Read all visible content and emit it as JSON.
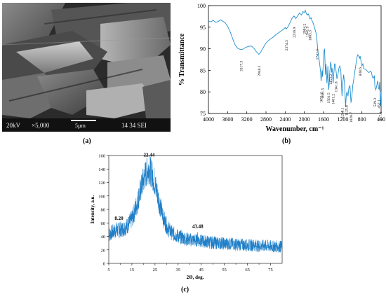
{
  "captions": {
    "a": "(a)",
    "b": "(b)",
    "c": "(c)"
  },
  "sem": {
    "info_bar": {
      "voltage": "20kV",
      "magnification": "×5,000",
      "scale": "5µm",
      "session": "14 34 SEI"
    }
  },
  "chart_data": [
    {
      "type": "line",
      "ylabel": "% Transmittance",
      "xlabel": "Wavenumber, cm⁻¹",
      "xlim": [
        4000,
        400
      ],
      "ylim": [
        75,
        100
      ],
      "x_ticks": [
        "4000",
        "3600",
        "3200",
        "2800",
        "2400",
        "2000",
        "1600",
        "1200",
        "800",
        "400"
      ],
      "y_ticks": [
        "75",
        "80",
        "85",
        "90",
        "95",
        "100"
      ],
      "color": "#1f8fd0",
      "grid": false,
      "series": [
        {
          "x": [
            4000,
            3950,
            3900,
            3850,
            3800,
            3750,
            3700,
            3650,
            3600,
            3550,
            3500,
            3450,
            3400,
            3350,
            3317,
            3280,
            3240,
            3200,
            3150,
            3100,
            3050,
            3000,
            2948,
            2900,
            2850,
            2800,
            2750,
            2700,
            2650,
            2600,
            2550,
            2500,
            2450,
            2400,
            2374,
            2340,
            2300,
            2260,
            2216,
            2180,
            2140,
            2100,
            2060,
            2030,
            2000,
            1980,
            1960,
            1941,
            1920,
            1900,
            1883,
            1860,
            1840,
            1820,
            1800,
            1780,
            1760,
            1741,
            1720,
            1700,
            1680,
            1660,
            1651,
            1640,
            1630,
            1621,
            1610,
            1600,
            1590,
            1580,
            1570,
            1560,
            1550,
            1540,
            1530,
            1520,
            1510,
            1500,
            1490,
            1480,
            1470,
            1460,
            1450,
            1440,
            1430,
            1420,
            1410,
            1400,
            1390,
            1380,
            1370,
            1360,
            1341,
            1320,
            1300,
            1280,
            1260,
            1240,
            1215,
            1200,
            1180,
            1160,
            1140,
            1125,
            1110,
            1090,
            1070,
            1050,
            1028,
            1010,
            990,
            970,
            950,
            930,
            910,
            890,
            870,
            850,
            838,
            820,
            800,
            780,
            760,
            740,
            720,
            700,
            680,
            660,
            640,
            620,
            600,
            580,
            560,
            540,
            529,
            510,
            490,
            470,
            452,
            440,
            430,
            420,
            417,
            410,
            400
          ],
          "y": [
            96.5,
            96.2,
            96.6,
            96.1,
            96.3,
            96.7,
            96.4,
            96.0,
            95.2,
            94.0,
            92.5,
            91.0,
            90.2,
            89.9,
            89.8,
            89.9,
            90.2,
            90.4,
            90.6,
            90.6,
            90.1,
            89.3,
            88.7,
            89.4,
            90.4,
            91.3,
            91.9,
            92.3,
            92.7,
            93.2,
            93.6,
            94.0,
            94.4,
            94.9,
            94.6,
            95.1,
            96.0,
            97.0,
            97.6,
            97.0,
            97.6,
            98.3,
            97.8,
            98.6,
            98.4,
            98.9,
            98.2,
            97.8,
            98.1,
            97.6,
            96.9,
            97.2,
            96.5,
            96.0,
            95.4,
            94.6,
            93.8,
            92.5,
            89.5,
            88.0,
            86.5,
            84.5,
            82.5,
            84.0,
            85.0,
            83.5,
            85.5,
            87.5,
            89.5,
            90.0,
            87.0,
            84.0,
            86.5,
            85.0,
            82.0,
            83.5,
            86.0,
            82.0,
            80.5,
            82.5,
            84.5,
            86.0,
            87.0,
            86.0,
            84.5,
            85.5,
            83.5,
            82.0,
            83.5,
            85.0,
            86.5,
            86.5,
            85.0,
            83.0,
            84.0,
            85.5,
            86.0,
            85.0,
            79.0,
            82.0,
            84.0,
            81.5,
            76.5,
            79.5,
            80.0,
            79.0,
            81.0,
            81.5,
            77.5,
            79.0,
            81.5,
            83.0,
            84.5,
            86.0,
            87.5,
            88.6,
            88.4,
            87.8,
            88.3,
            87.2,
            86.0,
            86.5,
            85.4,
            85.3,
            85.2,
            85.0,
            84.7,
            84.5,
            84.6,
            84.8,
            84.5,
            83.4,
            83.2,
            83.8,
            81.2,
            80.5,
            81.5,
            82.6,
            80.8,
            80.6,
            82.3,
            80.2,
            77.0,
            76.8,
            80.0
          ]
        }
      ],
      "annotations": [
        {
          "x": 3317,
          "label": "3317.3"
        },
        {
          "x": 2948,
          "label": "2948.3"
        },
        {
          "x": 2374,
          "label": "2374.3"
        },
        {
          "x": 2216,
          "label": "2216.9"
        },
        {
          "x": 2004,
          "label": "2004.2"
        },
        {
          "x": 1941,
          "label": "1941.9"
        },
        {
          "x": 1883,
          "label": "1883.3"
        },
        {
          "x": 1741,
          "label": "1741.3"
        },
        {
          "x": 1651,
          "label": "1651.2"
        },
        {
          "x": 1621,
          "label": "1621.5"
        },
        {
          "x": 1501,
          "label": "1501.5"
        },
        {
          "x": 1453,
          "label": "1453.2"
        },
        {
          "x": 1401,
          "label": "1401.2"
        },
        {
          "x": 1341,
          "label": "1341.8"
        },
        {
          "x": 1215,
          "label": "1215.1"
        },
        {
          "x": 1125,
          "label": "1125.6"
        },
        {
          "x": 1028,
          "label": "1028.7"
        },
        {
          "x": 838,
          "label": "838.6"
        },
        {
          "x": 529,
          "label": "529.3"
        },
        {
          "x": 452,
          "label": "452.1"
        },
        {
          "x": 417,
          "label": "417.4"
        }
      ]
    },
    {
      "type": "line",
      "ylabel": "Intensity, a.u.",
      "xlabel": "2Θ, deg.",
      "xlim": [
        5,
        80
      ],
      "ylim": [
        0,
        160
      ],
      "x_ticks": [
        "5",
        "15",
        "25",
        "35",
        "45",
        "55",
        "65",
        "75"
      ],
      "x_minor_ticks": [
        "10",
        "20",
        "30",
        "40",
        "50",
        "60",
        "70"
      ],
      "y_ticks": [
        "0",
        "20",
        "40",
        "60",
        "80",
        "100",
        "120",
        "140",
        "160"
      ],
      "color": "#1f7fc8",
      "grid": false,
      "series": [
        {
          "x": [
            5,
            6,
            7,
            8,
            8.2,
            9,
            10,
            11,
            12,
            13,
            14,
            15,
            16,
            17,
            18,
            19,
            20,
            21,
            22,
            22.44,
            23,
            24,
            25,
            26,
            27,
            28,
            29,
            30,
            31,
            32,
            33,
            34,
            35,
            36,
            37,
            38,
            39,
            40,
            41,
            42,
            43,
            43.48,
            44,
            45,
            46,
            47,
            48,
            49,
            50,
            52,
            54,
            56,
            58,
            60,
            62,
            64,
            66,
            68,
            70,
            72,
            74,
            76,
            78,
            80
          ],
          "y": [
            42,
            45,
            47,
            49,
            50,
            49,
            50,
            51,
            53,
            56,
            60,
            66,
            75,
            86,
            99,
            112,
            124,
            133,
            139,
            140,
            137,
            130,
            118,
            103,
            88,
            75,
            64,
            56,
            50,
            46,
            44,
            42,
            40,
            39,
            38,
            37,
            36,
            35,
            35,
            34,
            34,
            38,
            34,
            33,
            33,
            32,
            32,
            31,
            31,
            30,
            30,
            29,
            29,
            28,
            28,
            27,
            27,
            27,
            26,
            26,
            26,
            25,
            25,
            25
          ]
        }
      ],
      "annotations": [
        {
          "x": 8.2,
          "y": 50,
          "label": "8.20"
        },
        {
          "x": 22.44,
          "y": 140,
          "label": "22.44"
        },
        {
          "x": 43.48,
          "y": 38,
          "label": "43.48"
        }
      ]
    }
  ]
}
